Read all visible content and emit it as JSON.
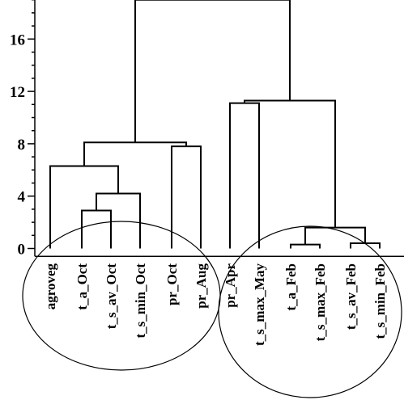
{
  "chart_data": {
    "type": "dendrogram",
    "title": "",
    "xlabel": "",
    "ylabel": "",
    "ylim": [
      -0.6,
      19
    ],
    "yticks": [
      0,
      4,
      8,
      12,
      16
    ],
    "leaves": [
      "agroveg",
      "t_a_Oct",
      "t_s_av_Oct",
      "t_s_min_Oct",
      "pr_Oct",
      "pr_Aug",
      "pr_Apr",
      "t_s_max_May",
      "t_a_Feb",
      "t_s_max_Feb",
      "t_s_av_Feb",
      "t_s_min_Feb"
    ],
    "merges": [
      {
        "id": "m_feb1",
        "children": [
          "t_a_Feb",
          "t_s_max_Feb"
        ],
        "height": 0.3
      },
      {
        "id": "m_feb2",
        "children": [
          "t_s_av_Feb",
          "t_s_min_Feb"
        ],
        "height": 0.4
      },
      {
        "id": "m_feb",
        "children": [
          "m_feb1",
          "m_feb2"
        ],
        "height": 1.6
      },
      {
        "id": "m_apr",
        "children": [
          "pr_Apr",
          "t_s_max_May"
        ],
        "height": 11.1
      },
      {
        "id": "m_right",
        "children": [
          "m_apr",
          "m_feb"
        ],
        "height": 11.3
      },
      {
        "id": "m_oct1",
        "children": [
          "t_a_Oct",
          "t_s_av_Oct"
        ],
        "height": 2.9
      },
      {
        "id": "m_oct2",
        "children": [
          "m_oct1",
          "t_s_min_Oct"
        ],
        "height": 4.2
      },
      {
        "id": "m_agro",
        "children": [
          "agroveg",
          "m_oct2"
        ],
        "height": 6.3
      },
      {
        "id": "m_pr",
        "children": [
          "pr_Oct",
          "pr_Aug"
        ],
        "height": 7.8
      },
      {
        "id": "m_left",
        "children": [
          "m_agro",
          "m_pr"
        ],
        "height": 8.1
      },
      {
        "id": "m_root",
        "children": [
          "m_left",
          "m_right"
        ],
        "height": 19
      }
    ],
    "grid": false,
    "annotations": [
      "ellipse around agroveg … pr_Aug group",
      "ellipse around pr_Apr … t_s_min_Feb group"
    ]
  }
}
